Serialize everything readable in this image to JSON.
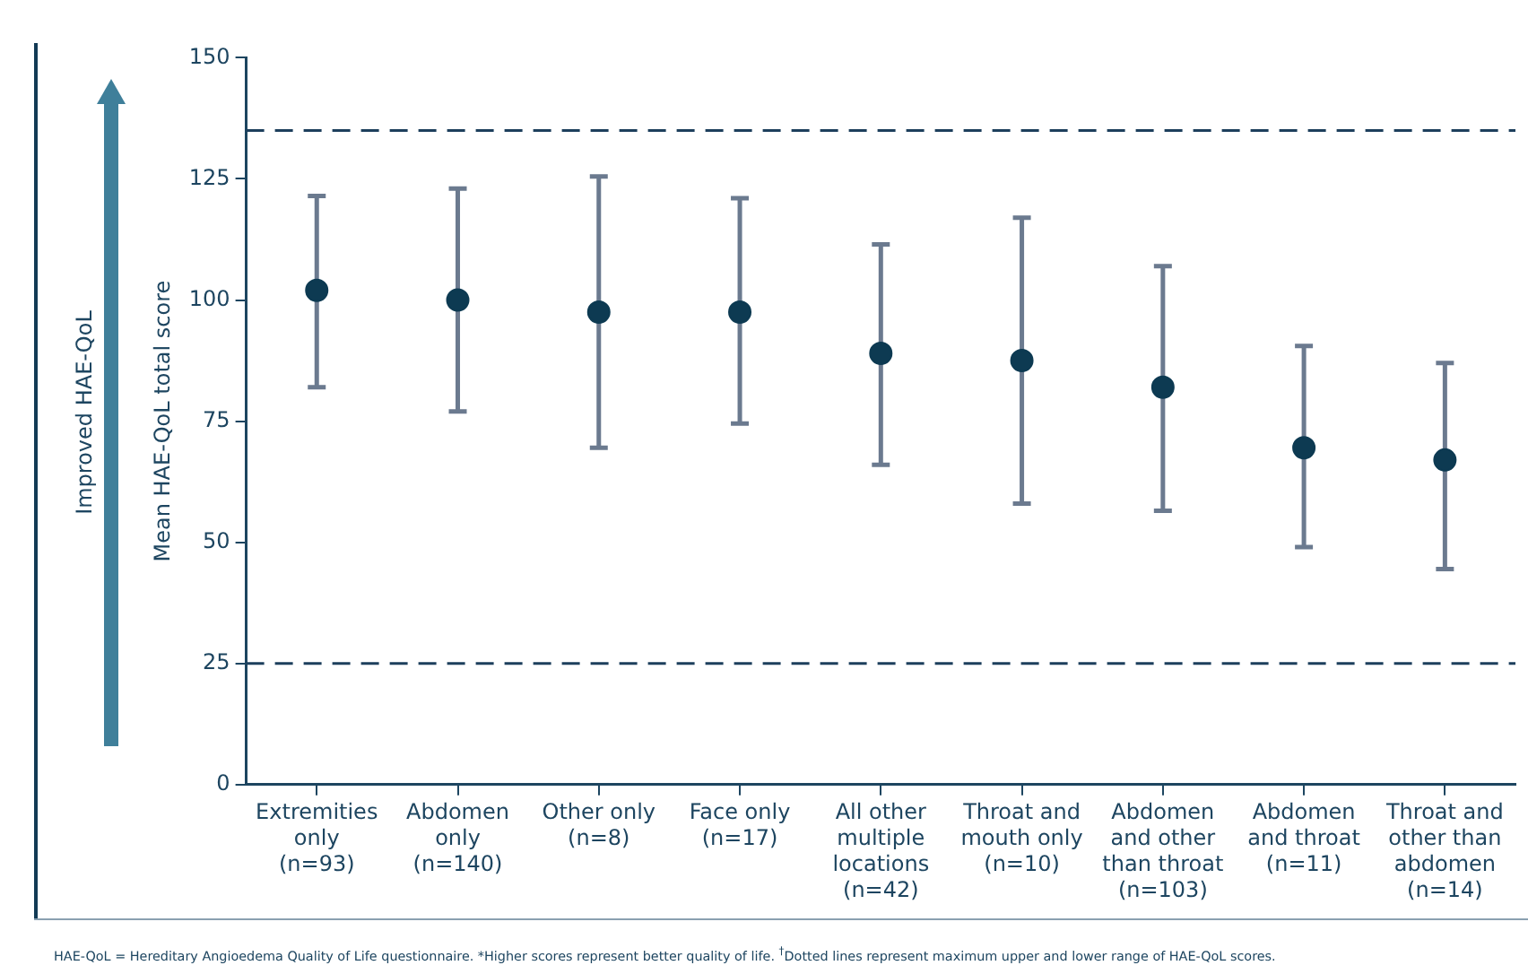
{
  "chart_data": {
    "type": "scatter",
    "ylabel": "Mean HAE-QoL total score",
    "categories": [
      "Extremities\nonly\n(n=93)",
      "Abdomen\nonly\n(n=140)",
      "Other only\n(n=8)",
      "Face only\n(n=17)",
      "All other\nmultiple\nlocations\n(n=42)",
      "Throat and\nmouth only\n(n=10)",
      "Abdomen\nand other\nthan throat\n(n=103)",
      "Abdomen\nand throat\n(n=11)",
      "Throat and\nother than\nabdomen\n(n=14)"
    ],
    "series": [
      {
        "color": "#0d3a52",
        "values": [
          102,
          100,
          97.5,
          97.5,
          89,
          87.5,
          82,
          69.5,
          67
        ],
        "errors": [
          [
            82,
            121.5
          ],
          [
            77,
            123
          ],
          [
            69.5,
            125.5
          ],
          [
            74.5,
            121
          ],
          [
            66,
            111.5
          ],
          [
            58,
            117
          ],
          [
            56.5,
            107
          ],
          [
            49,
            90.5
          ],
          [
            44.5,
            87
          ]
        ]
      }
    ],
    "ylim": [
      0,
      150
    ],
    "yticks": [
      0,
      25,
      50,
      75,
      100,
      125,
      150
    ],
    "ref_lines": [
      {
        "axis": "y",
        "value": 135,
        "color": "#1d3f5c",
        "line_style": "dashed"
      },
      {
        "axis": "y",
        "value": 25,
        "color": "#1d3f5c",
        "line_style": "dashed"
      }
    ],
    "annotations": [
      "Improved HAE-QoL",
      "HAE-QoL = Hereditary Angioedema Quality of Life questionnaire. *Higher scores represent better quality of life. $^{†}$Dotted lines represent maximum upper and lower range of HAE-QoL scores."
    ],
    "grid": false,
    "legend": false,
    "marker": "circle"
  }
}
